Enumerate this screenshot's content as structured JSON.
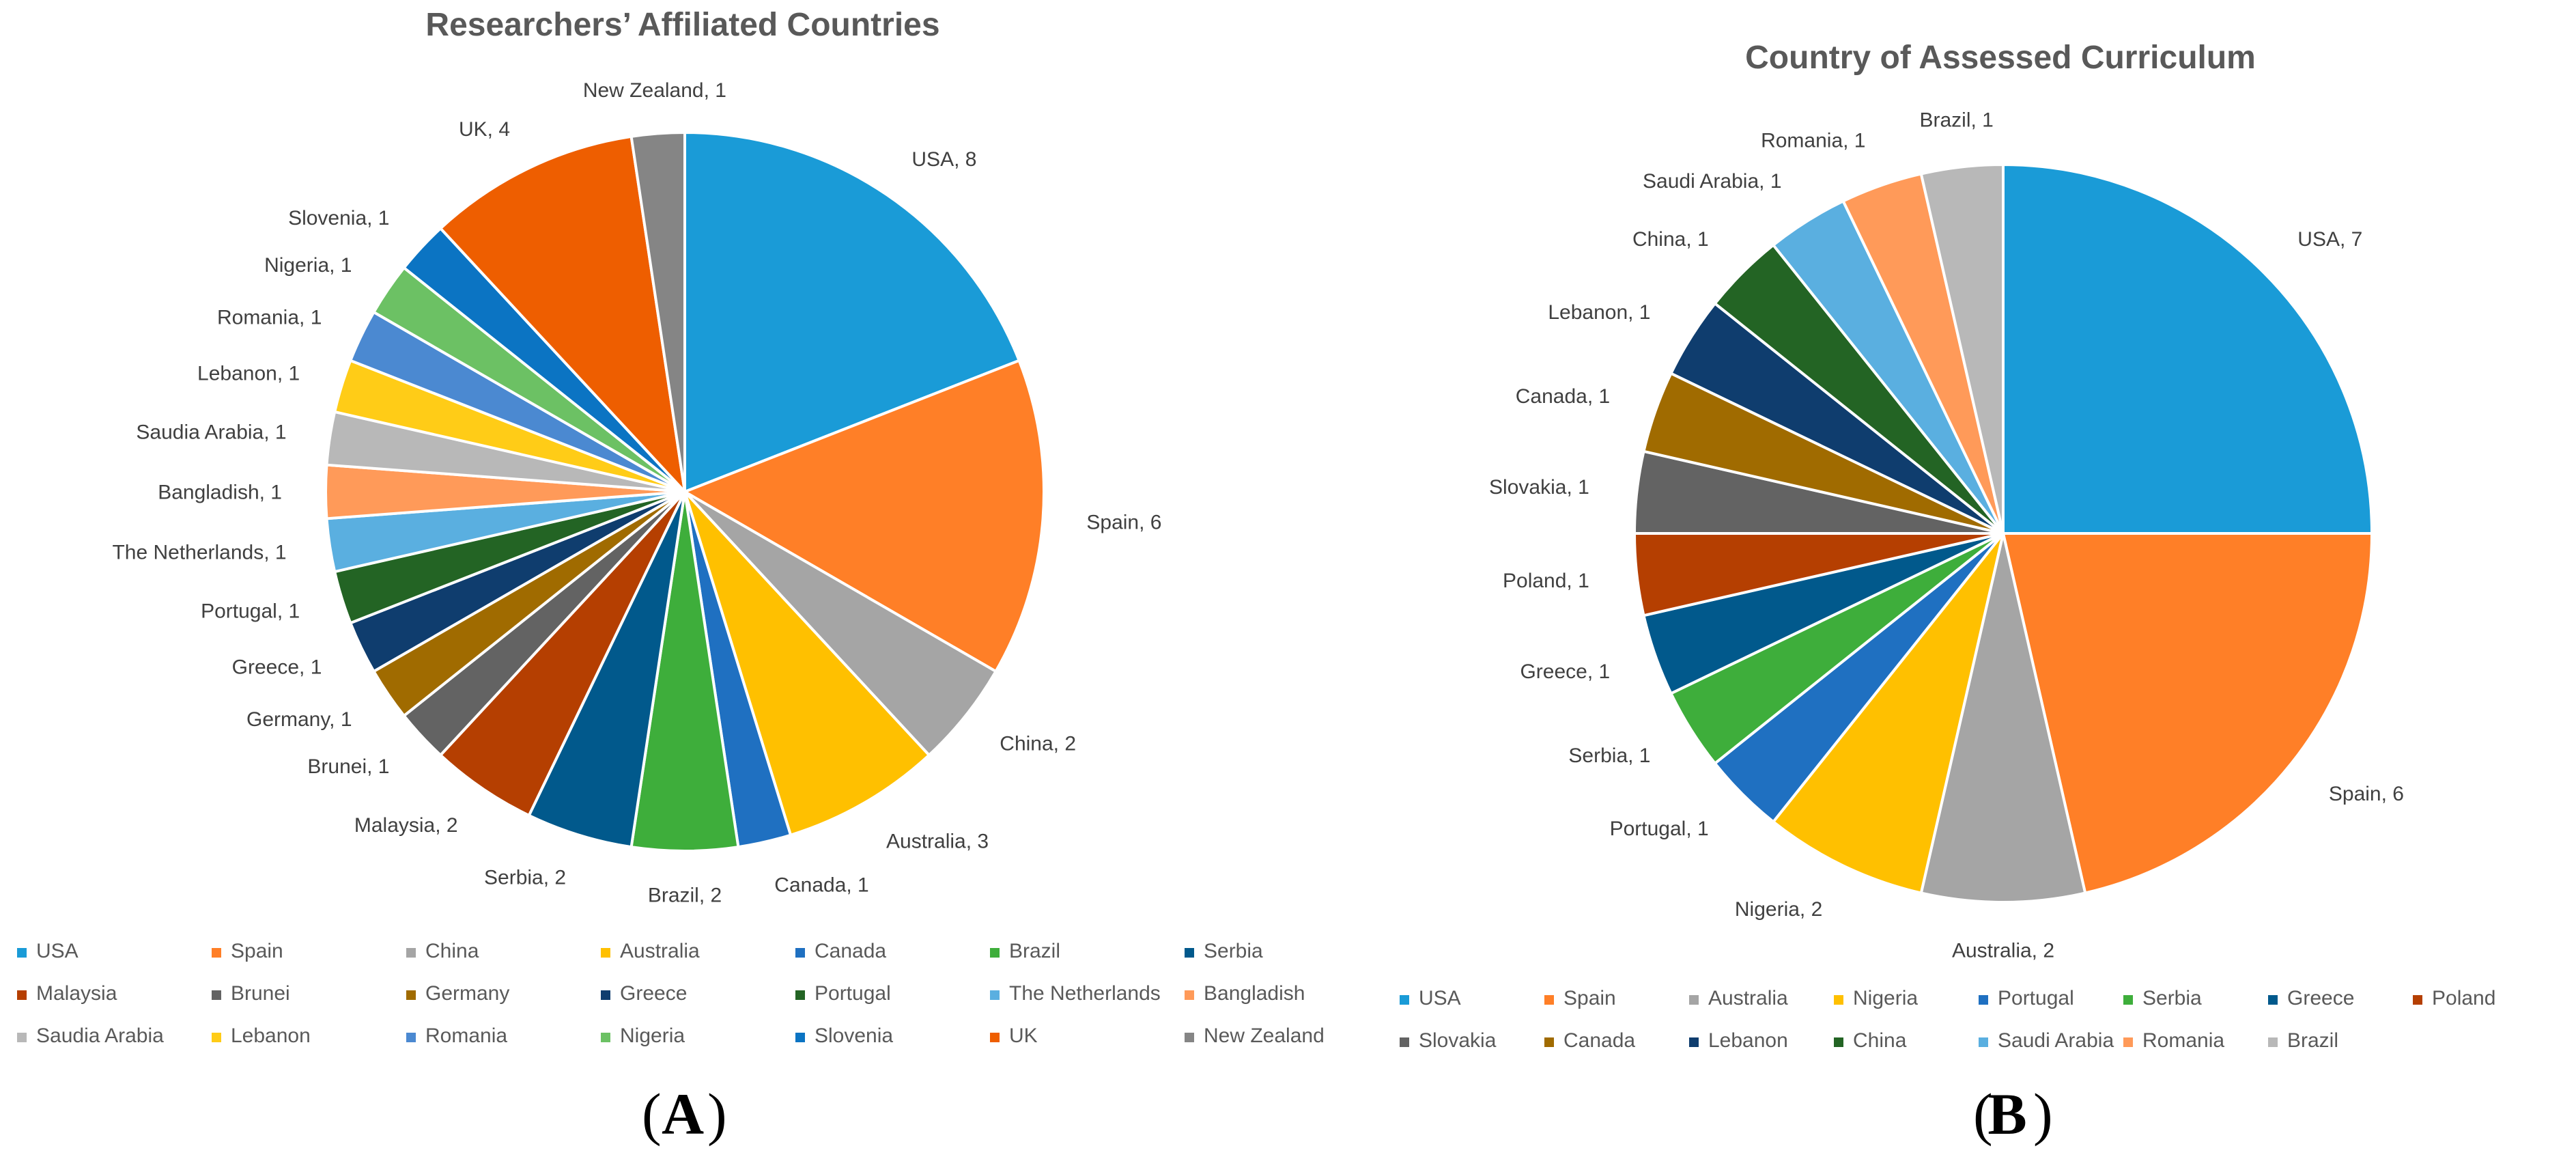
{
  "chart_data": [
    {
      "type": "pie",
      "panel": "A",
      "title": "Researchers’ Affiliated Countries",
      "categories": [
        "USA",
        "Spain",
        "China",
        "Australia",
        "Canada",
        "Brazil",
        "Serbia",
        "Malaysia",
        "Brunei",
        "Germany",
        "Greece",
        "Portugal",
        "The Netherlands",
        "Bangladish",
        "Saudia Arabia",
        "Lebanon",
        "Romania",
        "Nigeria",
        "Slovenia",
        "UK",
        "New Zealand"
      ],
      "values": [
        8,
        6,
        2,
        3,
        1,
        2,
        2,
        2,
        1,
        1,
        1,
        1,
        1,
        1,
        1,
        1,
        1,
        1,
        1,
        4,
        1
      ],
      "colors": [
        "#1a9bd7",
        "#ff7f27",
        "#a5a5a5",
        "#ffc000",
        "#1f70c1",
        "#3eae3b",
        "#01598c",
        "#b53f01",
        "#636363",
        "#a06b00",
        "#0f3d6e",
        "#236424",
        "#5aafe0",
        "#ff9a59",
        "#b8b8b8",
        "#ffcc17",
        "#4b89d1",
        "#6cc164",
        "#0b74c3",
        "#ee5e00",
        "#858585"
      ],
      "data_labels": [
        "USA, 8",
        "Spain, 6",
        "China, 2",
        "Australia, 3",
        "Canada, 1",
        "Brazil, 2",
        "Serbia, 2",
        "Malaysia, 2",
        "Brunei, 1",
        "Germany, 1",
        "Greece, 1",
        "Portugal, 1",
        "The Netherlands, 1",
        "Bangladish, 1",
        "Saudia Arabia, 1",
        "Lebanon, 1",
        "Romania, 1",
        "Nigeria, 1",
        "Slovenia, 1",
        "UK, 4",
        "New Zealand, 1"
      ],
      "legend": [
        "USA",
        "Spain",
        "China",
        "Australia",
        "Canada",
        "Brazil",
        "Serbia",
        "Malaysia",
        "Brunei",
        "Germany",
        "Greece",
        "Portugal",
        "The Netherlands",
        "Bangladish",
        "Saudia Arabia",
        "Lebanon",
        "Romania",
        "Nigeria",
        "Slovenia",
        "UK",
        "New Zealand"
      ],
      "legend_placement": "bottom",
      "start_angle_deg": 0,
      "direction": "clockwise",
      "panel_caption_letter": "A"
    },
    {
      "type": "pie",
      "panel": "B",
      "title": "Country of Assessed Curriculum",
      "categories": [
        "USA",
        "Spain",
        "Australia",
        "Nigeria",
        "Portugal",
        "Serbia",
        "Greece",
        "Poland",
        "Slovakia",
        "Canada",
        "Lebanon",
        "China",
        "Saudi Arabia",
        "Romania",
        "Brazil"
      ],
      "values": [
        7,
        6,
        2,
        2,
        1,
        1,
        1,
        1,
        1,
        1,
        1,
        1,
        1,
        1,
        1
      ],
      "colors": [
        "#1a9bd7",
        "#ff7f27",
        "#a5a5a5",
        "#ffc000",
        "#1f70c1",
        "#3eae3b",
        "#01598c",
        "#b53f01",
        "#636363",
        "#a06b00",
        "#0f3d6e",
        "#236424",
        "#5aafe0",
        "#ff9a59",
        "#b8b8b8"
      ],
      "data_labels": [
        "USA, 7",
        "Spain, 6",
        "Australia, 2",
        "Nigeria, 2",
        "Portugal, 1",
        "Serbia, 1",
        "Greece, 1",
        "Poland, 1",
        "Slovakia, 1",
        "Canada, 1",
        "Lebanon, 1",
        "China, 1",
        "Saudi Arabia, 1",
        "Romania, 1",
        "Brazil, 1"
      ],
      "legend": [
        "USA",
        "Spain",
        "Australia",
        "Nigeria",
        "Portugal",
        "Serbia",
        "Greece",
        "Poland",
        "Slovakia",
        "Canada",
        "Lebanon",
        "China",
        "Saudi Arabia",
        "Romania",
        "Brazil"
      ],
      "legend_placement": "bottom",
      "start_angle_deg": 0,
      "direction": "clockwise",
      "panel_caption_letter": "B"
    }
  ],
  "colors": {
    "title": "#595959",
    "label": "#404040",
    "slice_border": "#ffffff",
    "background": "#ffffff"
  }
}
